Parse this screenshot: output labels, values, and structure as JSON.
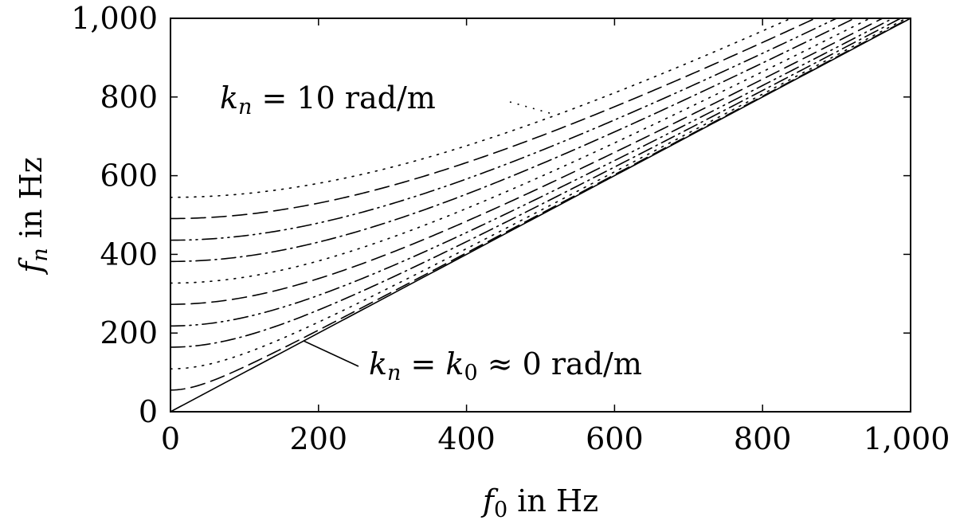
{
  "chart_data": {
    "type": "line",
    "title": "",
    "xlabel": {
      "var": "f",
      "sub": "0",
      "rest": " in Hz"
    },
    "ylabel": {
      "var": "f",
      "sub": "n",
      "rest": " in Hz"
    },
    "xlim": [
      0,
      1000
    ],
    "ylim": [
      0,
      1000
    ],
    "grid": false,
    "xticks": [
      0,
      200,
      400,
      600,
      800,
      1000
    ],
    "yticks": [
      0,
      200,
      400,
      600,
      800,
      1000
    ],
    "xtick_labels": [
      "0",
      "200",
      "400",
      "600",
      "800",
      "1,000"
    ],
    "ytick_labels": [
      "0",
      "200",
      "400",
      "600",
      "800",
      "1,000"
    ],
    "series": [
      {
        "k": 0,
        "f_at_zero": 0,
        "style": "solid"
      },
      {
        "k": 1,
        "f_at_zero": 55,
        "style": "dashed"
      },
      {
        "k": 2,
        "f_at_zero": 109,
        "style": "dotted"
      },
      {
        "k": 3,
        "f_at_zero": 164,
        "style": "dashdot"
      },
      {
        "k": 4,
        "f_at_zero": 218,
        "style": "dashdotdot"
      },
      {
        "k": 5,
        "f_at_zero": 273,
        "style": "dashed"
      },
      {
        "k": 6,
        "f_at_zero": 327,
        "style": "dotted"
      },
      {
        "k": 7,
        "f_at_zero": 382,
        "style": "dashdot"
      },
      {
        "k": 8,
        "f_at_zero": 436,
        "style": "dashdotdot"
      },
      {
        "k": 9,
        "f_at_zero": 491,
        "style": "dashed"
      },
      {
        "k": 10,
        "f_at_zero": 545,
        "style": "dotted"
      }
    ],
    "annotations": [
      {
        "id": "top",
        "parts": [
          "k",
          "n",
          " = 10 rad/m"
        ],
        "points_to": {
          "x": 520,
          "y": 755
        }
      },
      {
        "id": "bottom",
        "parts": [
          "k",
          "n",
          " = ",
          "k",
          "0",
          " ≈ 0 rad/m"
        ],
        "points_to": {
          "x": 180,
          "y": 180
        }
      }
    ]
  }
}
